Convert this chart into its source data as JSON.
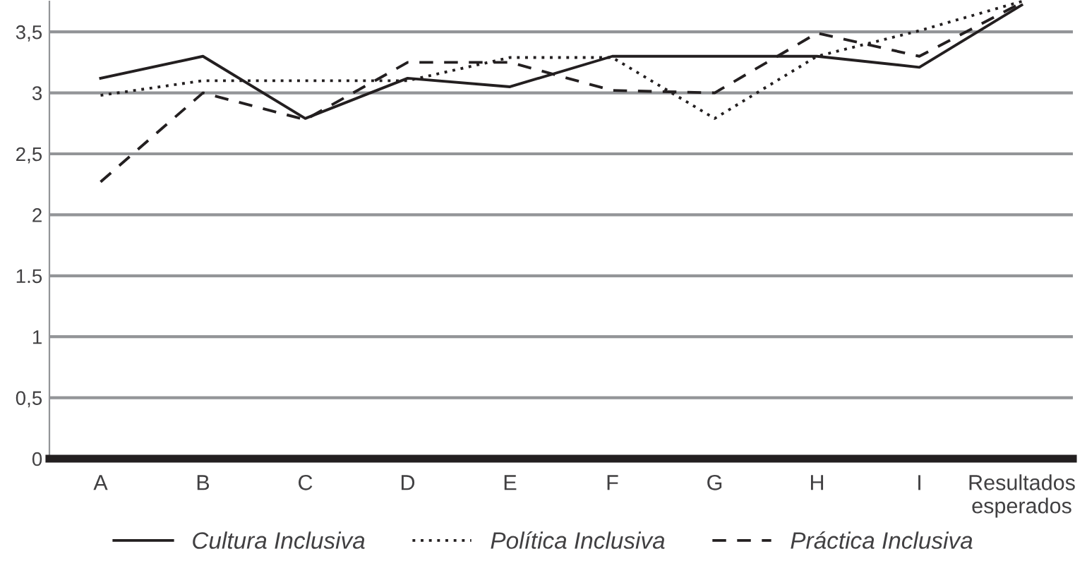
{
  "chart_data": {
    "type": "line",
    "categories": [
      "A",
      "B",
      "C",
      "D",
      "E",
      "F",
      "G",
      "H",
      "I",
      "Resultados\nesperados"
    ],
    "series": [
      {
        "name": "Cultura Inclusiva",
        "color": "#231f20",
        "line_style": "solid",
        "values": [
          3.12,
          3.3,
          2.79,
          3.12,
          3.05,
          3.3,
          3.3,
          3.3,
          3.21,
          3.72
        ]
      },
      {
        "name": "Política Inclusiva",
        "color": "#231f20",
        "line_style": "dotted",
        "values": [
          2.98,
          3.1,
          3.1,
          3.1,
          3.29,
          3.29,
          2.79,
          3.3,
          3.51,
          3.75
        ]
      },
      {
        "name": "Práctica Inclusiva",
        "color": "#231f20",
        "line_style": "dashed",
        "values": [
          2.27,
          3.0,
          2.78,
          3.25,
          3.25,
          3.02,
          3.0,
          3.49,
          3.3,
          3.74
        ]
      }
    ],
    "ylim": [
      0,
      3.75
    ],
    "yticks": [
      0,
      {
        "value": 0.5,
        "label": "0,5"
      },
      1,
      {
        "value": 1.5,
        "label": "1.5"
      },
      2,
      {
        "value": 2.5,
        "label": "2,5"
      },
      3,
      {
        "value": 3.5,
        "label": "3,5"
      }
    ],
    "grid": "y",
    "legend": "bottom",
    "marker": "none"
  }
}
